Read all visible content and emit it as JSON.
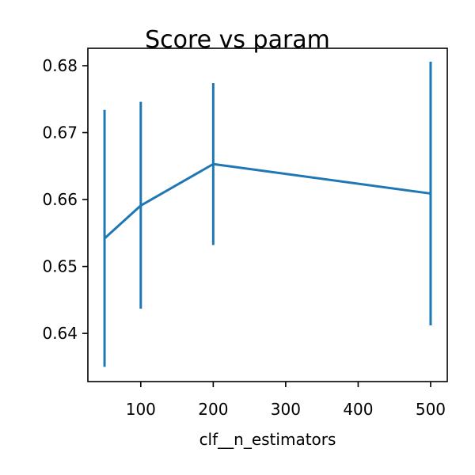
{
  "chart_data": {
    "type": "line",
    "title": "Score vs param",
    "xlabel": "clf__n_estimators",
    "ylabel": "",
    "xlim": [
      27,
      523
    ],
    "ylim": [
      0.6328,
      0.6826
    ],
    "xticks": [
      100,
      200,
      300,
      400,
      500
    ],
    "xtick_labels": [
      "100",
      "200",
      "300",
      "400",
      "500"
    ],
    "yticks": [
      0.64,
      0.65,
      0.66,
      0.67,
      0.68
    ],
    "ytick_labels": [
      "0.64",
      "0.65",
      "0.66",
      "0.67",
      "0.68"
    ],
    "grid": false,
    "series": [
      {
        "color": "#1f77b4",
        "x": [
          50,
          100,
          200,
          500
        ],
        "y": [
          0.6542,
          0.6591,
          0.6653,
          0.6609
        ],
        "yerr_low": [
          0.635,
          0.6437,
          0.6532,
          0.6412
        ],
        "yerr_high": [
          0.6734,
          0.6746,
          0.6774,
          0.6806
        ]
      }
    ]
  }
}
